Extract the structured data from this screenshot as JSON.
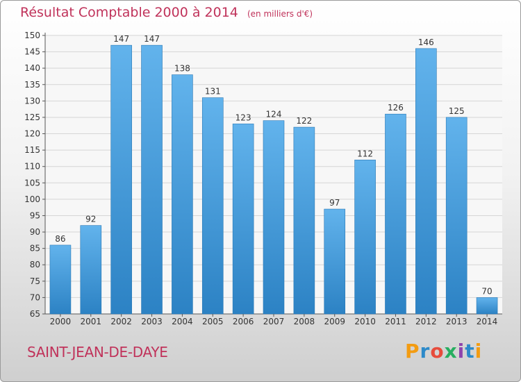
{
  "header": {
    "title": "Résultat Comptable 2000 à 2014",
    "unit": "(en milliers d'€)"
  },
  "footer": {
    "city": "SAINT-JEAN-DE-DAYE",
    "brand_letters": [
      "P",
      "r",
      "o",
      "x",
      "i",
      "t",
      "i"
    ]
  },
  "colors": {
    "title": "#c0325a",
    "bar_top": "#62b3ec",
    "bar_bottom": "#2c82c4",
    "grid": "#d6d6d6"
  },
  "chart_data": {
    "type": "bar",
    "title": "Résultat Comptable 2000 à 2014",
    "subtitle": "(en milliers d'€)",
    "xlabel": "",
    "ylabel": "",
    "categories": [
      "2000",
      "2001",
      "2002",
      "2003",
      "2004",
      "2005",
      "2006",
      "2007",
      "2008",
      "2009",
      "2010",
      "2011",
      "2012",
      "2013",
      "2014"
    ],
    "values": [
      86,
      92,
      147,
      147,
      138,
      131,
      123,
      124,
      122,
      97,
      112,
      126,
      146,
      125,
      70
    ],
    "ylim": [
      65,
      150
    ],
    "yticks": [
      65,
      70,
      75,
      80,
      85,
      90,
      95,
      100,
      105,
      110,
      115,
      120,
      125,
      130,
      135,
      140,
      145,
      150
    ],
    "grid": true,
    "data_labels": true
  }
}
